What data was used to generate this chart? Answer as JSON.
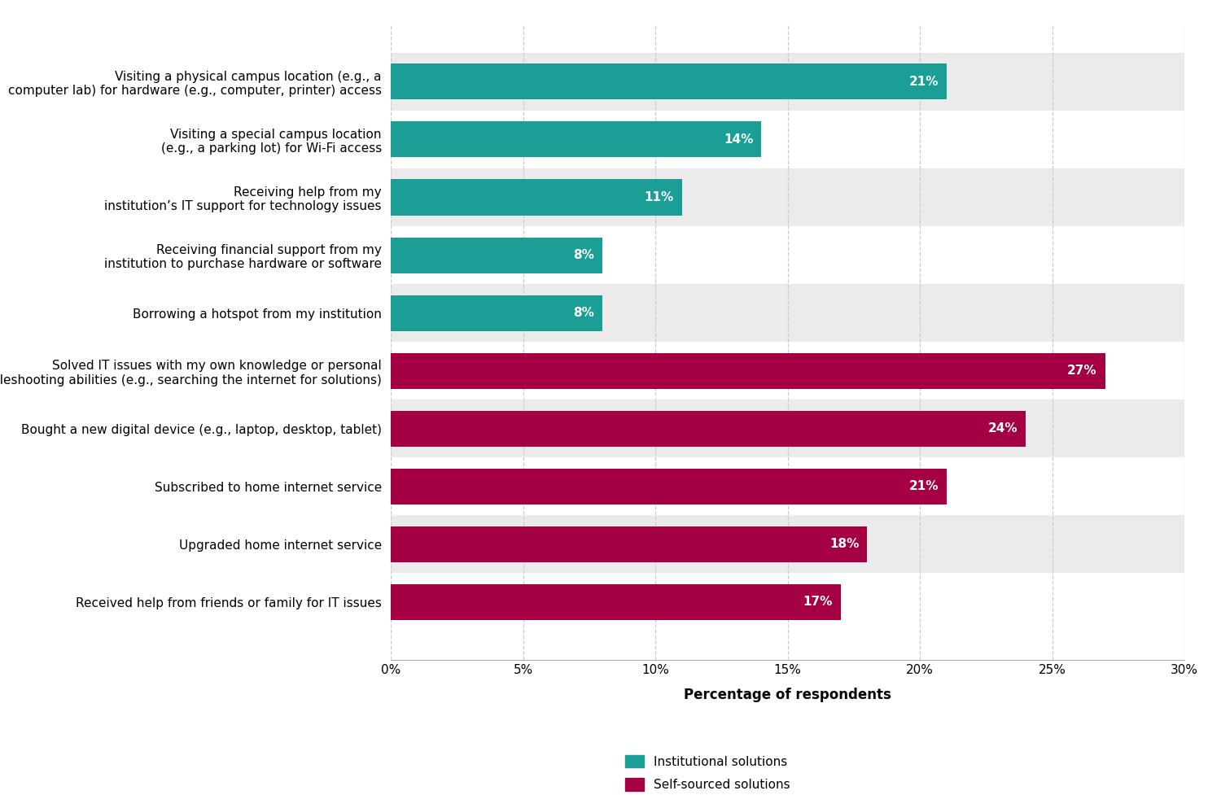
{
  "categories": [
    "Visiting a physical campus location (e.g., a\ncomputer lab) for hardware (e.g., computer, printer) access",
    "Visiting a special campus location\n(e.g., a parking lot) for Wi-Fi access",
    "Receiving help from my\ninstitution’s IT support for technology issues",
    "Receiving financial support from my\ninstitution to purchase hardware or software",
    "Borrowing a hotspot from my institution",
    "Solved IT issues with my own knowledge or personal\ntroubleshooting abilities (e.g., searching the internet for solutions)",
    "Bought a new digital device (e.g., laptop, desktop, tablet)",
    "Subscribed to home internet service",
    "Upgraded home internet service",
    "Received help from friends or family for IT issues"
  ],
  "values": [
    21,
    14,
    11,
    8,
    8,
    27,
    24,
    21,
    18,
    17
  ],
  "colors": [
    "#1a9e96",
    "#1a9e96",
    "#1a9e96",
    "#1a9e96",
    "#1a9e96",
    "#a50044",
    "#a50044",
    "#a50044",
    "#a50044",
    "#a50044"
  ],
  "bar_color_institutional": "#1a9e96",
  "bar_color_self": "#a50044",
  "xlabel": "Percentage of respondents",
  "xlim": [
    0,
    30
  ],
  "xtick_values": [
    0,
    5,
    10,
    15,
    20,
    25,
    30
  ],
  "xtick_labels": [
    "0%",
    "5%",
    "10%",
    "15%",
    "20%",
    "25%",
    "30%"
  ],
  "legend_institutional": "Institutional solutions",
  "legend_self": "Self-sourced solutions",
  "row_color_odd": "#ffffff",
  "row_color_even": "#ebebeb",
  "bar_height": 0.62,
  "label_fontsize": 11,
  "tick_fontsize": 11,
  "xlabel_fontsize": 12,
  "legend_fontsize": 11,
  "value_label_fontsize": 11
}
